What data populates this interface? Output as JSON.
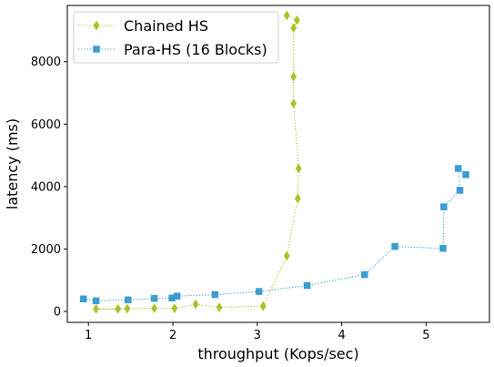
{
  "chart_data": {
    "type": "line",
    "xlabel": "throughput (Kops/sec)",
    "ylabel": "latency (ms)",
    "xlim": [
      0.75,
      5.75
    ],
    "ylim": [
      -350,
      9800
    ],
    "xticks": [
      1,
      2,
      3,
      4,
      5
    ],
    "yticks": [
      0,
      2000,
      4000,
      6000,
      8000
    ],
    "grid": false,
    "legend_position": "top-left",
    "series": [
      {
        "name": "Chained HS",
        "color": "#a9c42a",
        "marker": "diamond",
        "line_style": "dotted",
        "points": [
          [
            1.35,
            80
          ],
          [
            1.09,
            80
          ],
          [
            1.46,
            90
          ],
          [
            1.78,
            100
          ],
          [
            2.02,
            100
          ],
          [
            2.27,
            230
          ],
          [
            2.55,
            130
          ],
          [
            3.07,
            170
          ],
          [
            3.35,
            1780
          ],
          [
            3.48,
            3620
          ],
          [
            3.49,
            4580
          ],
          [
            3.43,
            6660
          ],
          [
            3.43,
            7520
          ],
          [
            3.43,
            9080
          ],
          [
            3.47,
            9330
          ],
          [
            3.35,
            9480
          ]
        ]
      },
      {
        "name": "Para-HS (16 Blocks)",
        "color": "#3b9dd0",
        "marker": "square",
        "line_style": "dotted",
        "points": [
          [
            0.94,
            400
          ],
          [
            1.09,
            340
          ],
          [
            1.47,
            370
          ],
          [
            1.78,
            420
          ],
          [
            1.99,
            430
          ],
          [
            2.05,
            490
          ],
          [
            2.5,
            540
          ],
          [
            3.02,
            640
          ],
          [
            3.59,
            830
          ],
          [
            4.27,
            1180
          ],
          [
            4.63,
            2080
          ],
          [
            5.2,
            2020
          ],
          [
            5.21,
            3350
          ],
          [
            5.4,
            3880
          ],
          [
            5.38,
            4580
          ],
          [
            5.47,
            4380
          ]
        ]
      }
    ]
  }
}
